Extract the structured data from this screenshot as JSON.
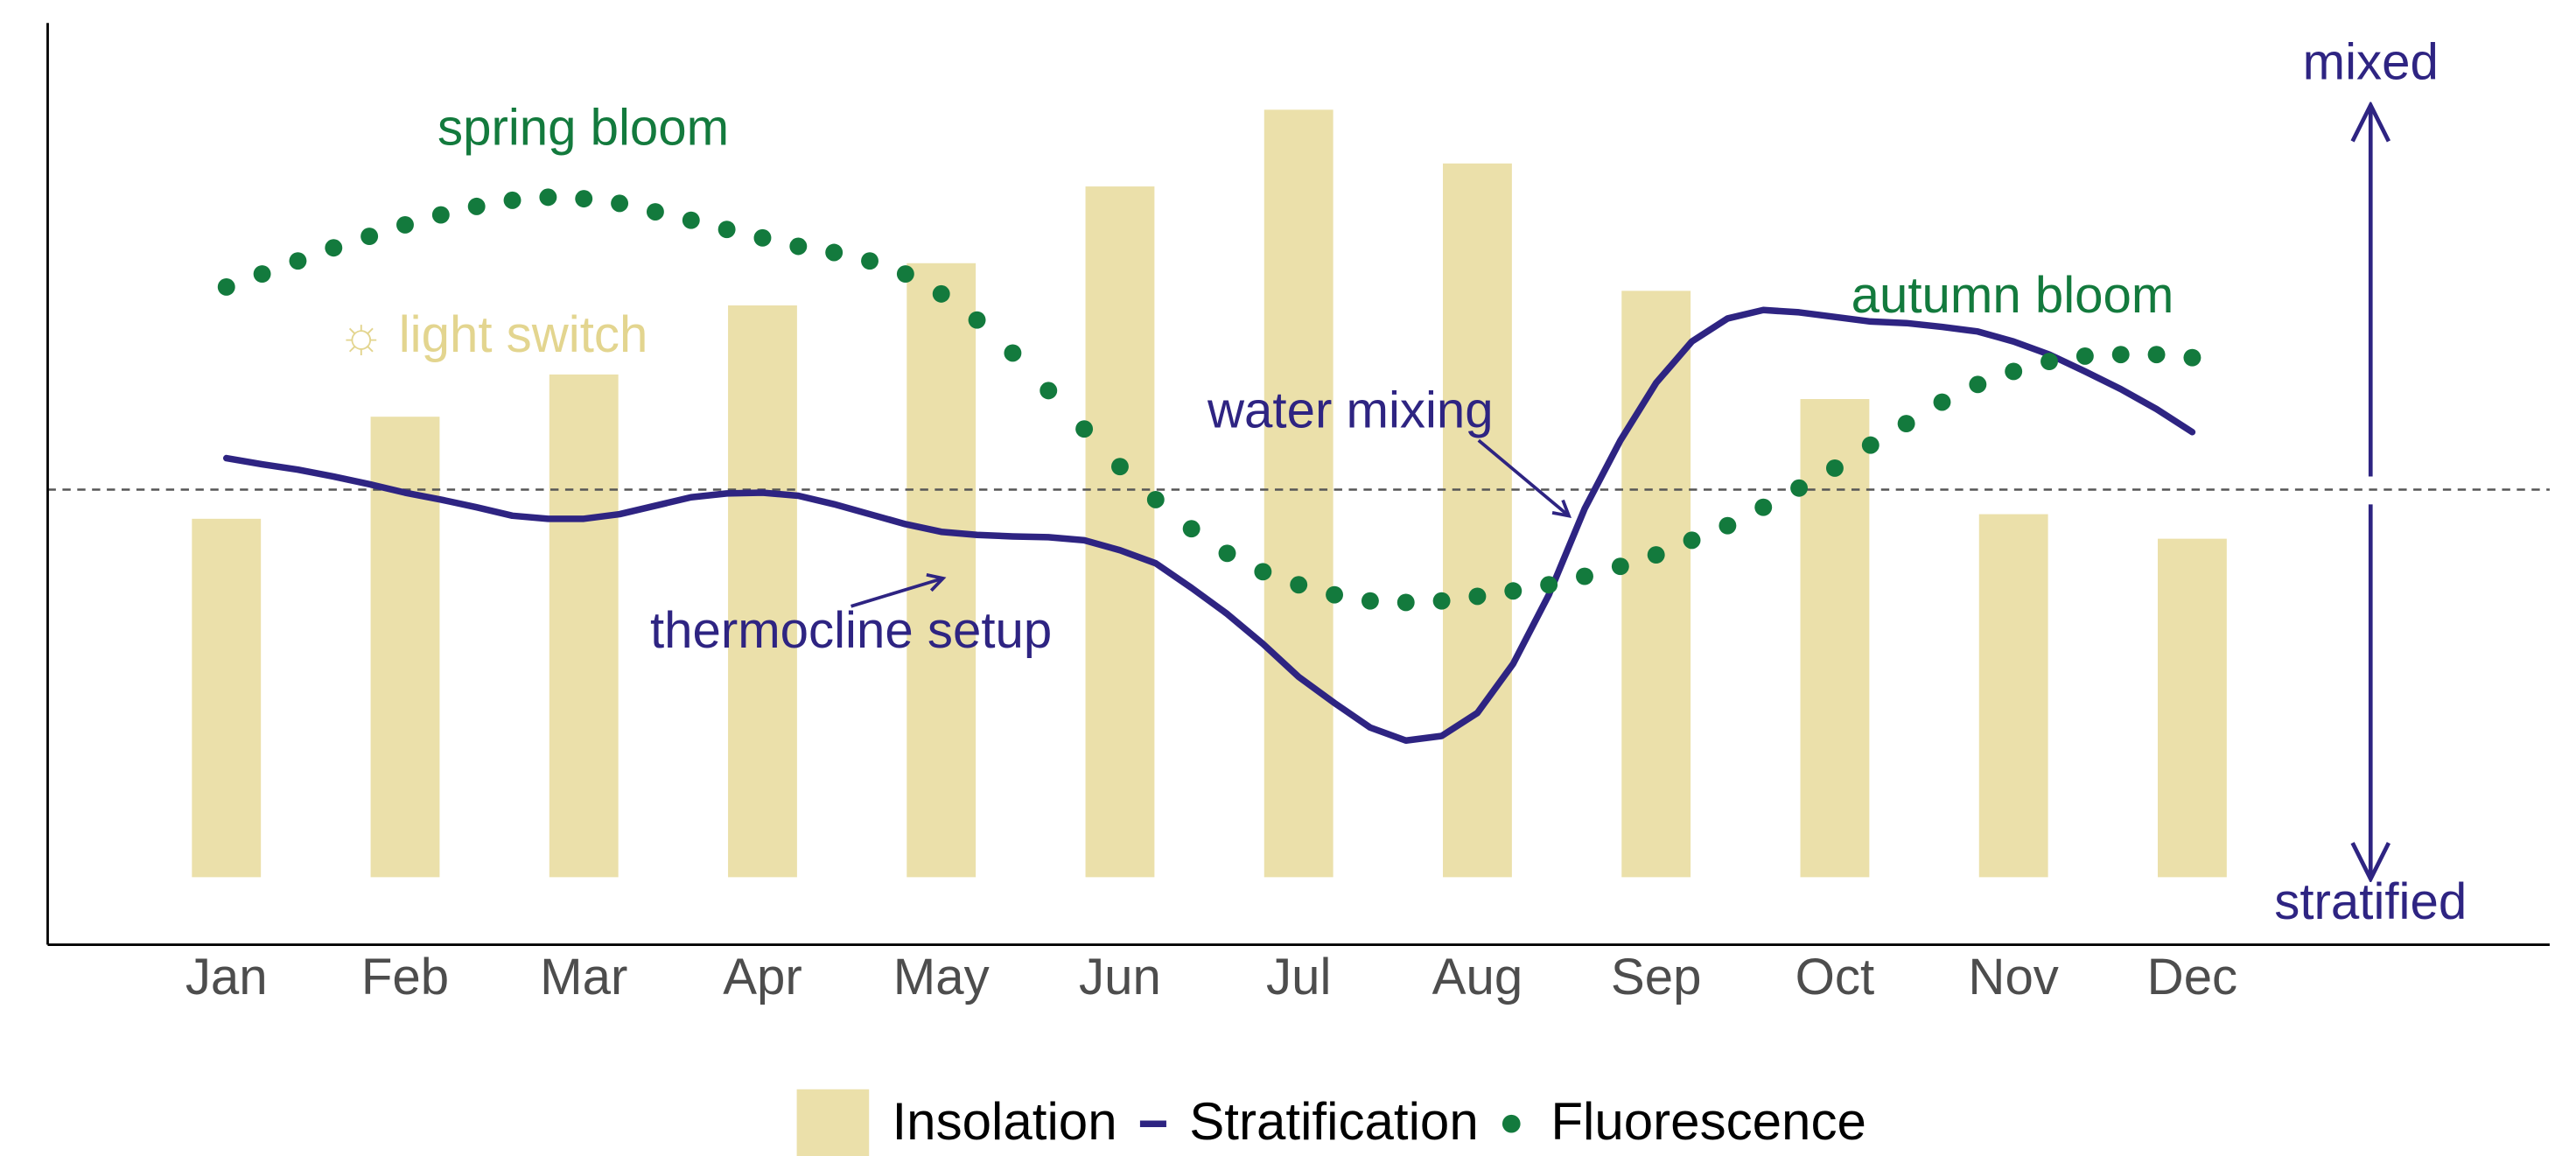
{
  "chart_data": {
    "type": "combo",
    "xlim": [
      0,
      14
    ],
    "ylim": [
      -8.8,
      111.3
    ],
    "xticks": [
      {
        "value": 1,
        "label": "Jan"
      },
      {
        "value": 2,
        "label": "Feb"
      },
      {
        "value": 3,
        "label": "Mar"
      },
      {
        "value": 4,
        "label": "Apr"
      },
      {
        "value": 5,
        "label": "May"
      },
      {
        "value": 6,
        "label": "Jun"
      },
      {
        "value": 7,
        "label": "Jul"
      },
      {
        "value": 8,
        "label": "Aug"
      },
      {
        "value": 9,
        "label": "Sep"
      },
      {
        "value": 10,
        "label": "Oct"
      },
      {
        "value": 11,
        "label": "Nov"
      },
      {
        "value": 12,
        "label": "Dec"
      }
    ],
    "reference_line": 50.5,
    "legend": "bottom",
    "series": [
      {
        "name": "Insolation",
        "type": "bar",
        "color": "#ebe0aa",
        "x": [
          1,
          2,
          3,
          4,
          5,
          6,
          7,
          8,
          9,
          10,
          11,
          12
        ],
        "values": [
          46.7,
          60.0,
          65.5,
          74.5,
          80.0,
          90.0,
          100.0,
          93.0,
          76.4,
          62.3,
          47.3,
          44.1
        ]
      },
      {
        "name": "Stratification",
        "type": "line",
        "color": "#2e2482",
        "x": [
          1,
          1.2,
          1.4,
          1.6,
          1.8,
          2,
          2.2,
          2.4,
          2.6,
          2.8,
          3,
          3.2,
          3.4,
          3.6,
          3.8,
          4,
          4.2,
          4.4,
          4.6,
          4.8,
          5,
          5.2,
          5.4,
          5.6,
          5.8,
          6,
          6.2,
          6.4,
          6.6,
          6.8,
          7,
          7.2,
          7.4,
          7.6,
          7.8,
          8,
          8.2,
          8.4,
          8.6,
          8.8,
          9,
          9.2,
          9.4,
          9.6,
          9.8,
          10,
          10.2,
          10.4,
          10.6,
          10.8,
          11,
          11.2,
          11.4,
          11.6,
          11.8,
          12
        ],
        "values": [
          54.6,
          53.8,
          53.1,
          52.2,
          51.2,
          50.1,
          49.2,
          48.2,
          47.1,
          46.7,
          46.7,
          47.3,
          48.4,
          49.5,
          50.0,
          50.1,
          49.7,
          48.6,
          47.3,
          46.0,
          45.0,
          44.6,
          44.4,
          44.3,
          43.9,
          42.6,
          40.9,
          37.7,
          34.3,
          30.4,
          26.1,
          22.7,
          19.5,
          17.8,
          18.4,
          21.4,
          27.8,
          36.8,
          48.0,
          56.9,
          64.4,
          69.8,
          72.8,
          73.9,
          73.6,
          73.0,
          72.4,
          72.2,
          71.7,
          71.1,
          69.8,
          68.1,
          65.9,
          63.6,
          61.0,
          58.0
        ]
      },
      {
        "name": "Fluorescence",
        "type": "dots",
        "color": "#137a3d",
        "x": [
          1,
          1.2,
          1.4,
          1.6,
          1.8,
          2,
          2.2,
          2.4,
          2.6,
          2.8,
          3,
          3.2,
          3.4,
          3.6,
          3.8,
          4,
          4.2,
          4.4,
          4.6,
          4.8,
          5,
          5.2,
          5.4,
          5.6,
          5.8,
          6,
          6.2,
          6.4,
          6.6,
          6.8,
          7,
          7.2,
          7.4,
          7.6,
          7.8,
          8,
          8.2,
          8.4,
          8.6,
          8.8,
          9,
          9.2,
          9.4,
          9.6,
          9.8,
          10,
          10.2,
          10.4,
          10.6,
          10.8,
          11,
          11.2,
          11.4,
          11.6,
          11.8,
          12
        ],
        "values": [
          76.9,
          78.6,
          80.3,
          82.0,
          83.5,
          85.0,
          86.3,
          87.4,
          88.2,
          88.6,
          88.4,
          87.8,
          86.7,
          85.6,
          84.4,
          83.3,
          82.2,
          81.4,
          80.3,
          78.6,
          76.0,
          72.6,
          68.3,
          63.4,
          58.4,
          53.5,
          49.2,
          45.4,
          42.2,
          39.8,
          38.1,
          36.8,
          36.0,
          35.8,
          36.0,
          36.6,
          37.3,
          38.1,
          39.2,
          40.5,
          42.0,
          43.9,
          45.8,
          48.2,
          50.7,
          53.3,
          56.3,
          59.1,
          61.9,
          64.2,
          65.9,
          67.2,
          67.9,
          68.1,
          68.1,
          67.7
        ]
      }
    ],
    "annotations": [
      {
        "text": "spring bloom",
        "color": "#137a3d"
      },
      {
        "text": "☼ light switch",
        "color": "#e3d58f"
      },
      {
        "text": "autumn bloom",
        "color": "#137a3d"
      },
      {
        "text": "water mixing",
        "color": "#2e2482"
      },
      {
        "text": "thermocline setup",
        "color": "#2e2482"
      },
      {
        "text": "mixed",
        "color": "#2e2482"
      },
      {
        "text": "stratified",
        "color": "#2e2482"
      }
    ]
  }
}
